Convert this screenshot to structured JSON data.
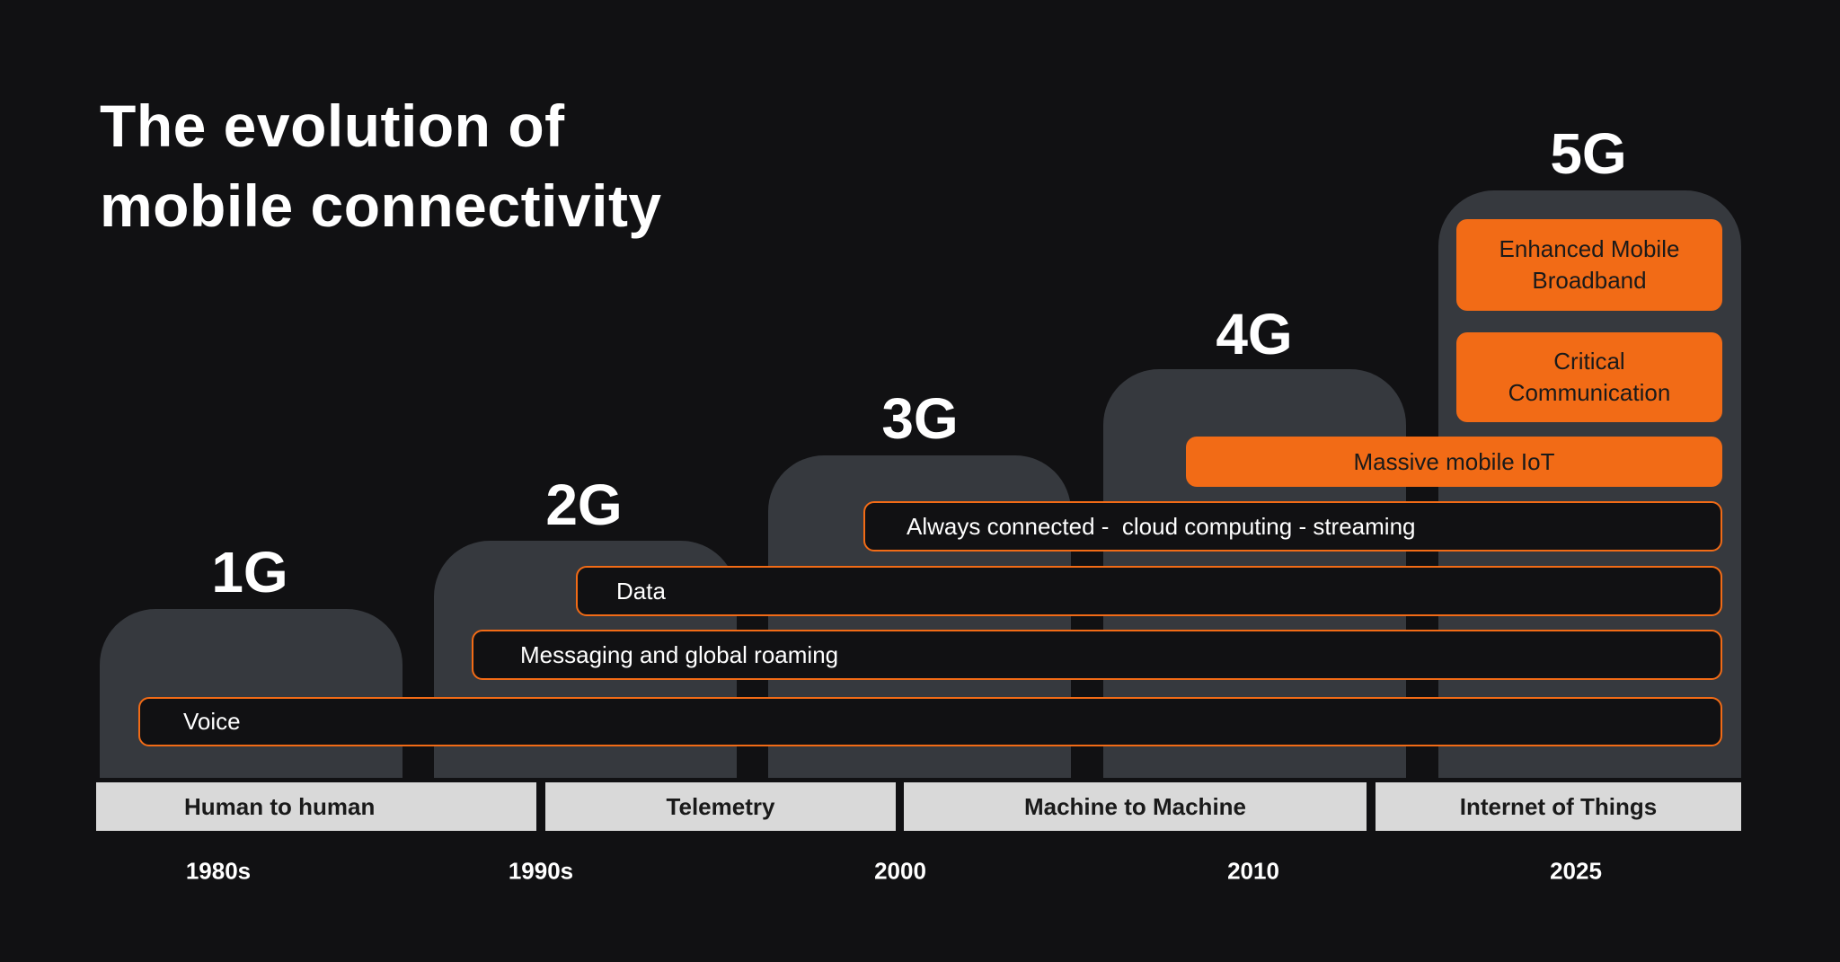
{
  "title": {
    "line1": "The evolution of",
    "line2": "mobile connectivity"
  },
  "generations": [
    "1G",
    "2G",
    "3G",
    "4G",
    "5G"
  ],
  "capabilities": {
    "voice": "Voice",
    "messaging": "Messaging and global roaming",
    "data": "Data",
    "always_connected": "Always connected -  cloud computing - streaming",
    "massive_iot": "Massive mobile IoT",
    "critical": "Critical Communication",
    "embb": "Enhanced Mobile Broadband"
  },
  "eras": [
    "Human to human",
    "Telemetry",
    "Machine to Machine",
    "Internet of Things"
  ],
  "years": [
    "1980s",
    "1990s",
    "2000",
    "2010",
    "2025"
  ],
  "colors": {
    "background": "#111113",
    "column": "#36393e",
    "accent": "#f26b16",
    "band": "#d9d9d9"
  }
}
